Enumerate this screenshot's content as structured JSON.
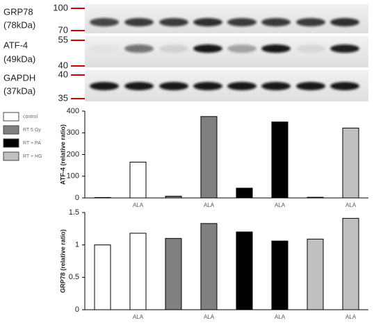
{
  "blot": {
    "rows": [
      {
        "name": "GRP78",
        "size": "(78kDa)",
        "markers": [
          100,
          70
        ]
      },
      {
        "name": "ATF-4",
        "size": "(49kDa)",
        "markers": [
          55,
          40
        ]
      },
      {
        "name": "GAPDH",
        "size": "(37kDa)",
        "markers": [
          40,
          35
        ]
      }
    ]
  },
  "legend": [
    {
      "name": "control",
      "color": "#ffffff"
    },
    {
      "name": "RT 5 Gy",
      "color": "#808080"
    },
    {
      "name": "RT + PA",
      "color": "#000000"
    },
    {
      "name": "RT + HG",
      "color": "#c0c0c0"
    }
  ],
  "chart_data": [
    {
      "type": "bar",
      "ylabel": "ATF-4  (relative ratio)",
      "categories": [
        null,
        "ALA",
        null,
        "ALA",
        null,
        "ALA",
        null,
        "ALA"
      ],
      "values": [
        2,
        165,
        8,
        375,
        45,
        350,
        3,
        322
      ],
      "colors": [
        "#ffffff",
        "#ffffff",
        "#808080",
        "#808080",
        "#000000",
        "#000000",
        "#c0c0c0",
        "#c0c0c0"
      ],
      "ylim": [
        0,
        400
      ],
      "yticks": [
        0,
        100,
        200,
        300,
        400
      ]
    },
    {
      "type": "bar",
      "ylabel": "GRP78 (relative ratio)",
      "categories": [
        null,
        "ALA",
        null,
        "ALA",
        null,
        "ALA",
        null,
        "ALA"
      ],
      "values": [
        1.0,
        1.18,
        1.1,
        1.33,
        1.2,
        1.06,
        1.09,
        1.41
      ],
      "colors": [
        "#ffffff",
        "#ffffff",
        "#808080",
        "#808080",
        "#000000",
        "#000000",
        "#c0c0c0",
        "#c0c0c0"
      ],
      "ylim": [
        0,
        1.5
      ],
      "yticks": [
        0,
        0.5,
        1,
        1.5
      ]
    }
  ]
}
